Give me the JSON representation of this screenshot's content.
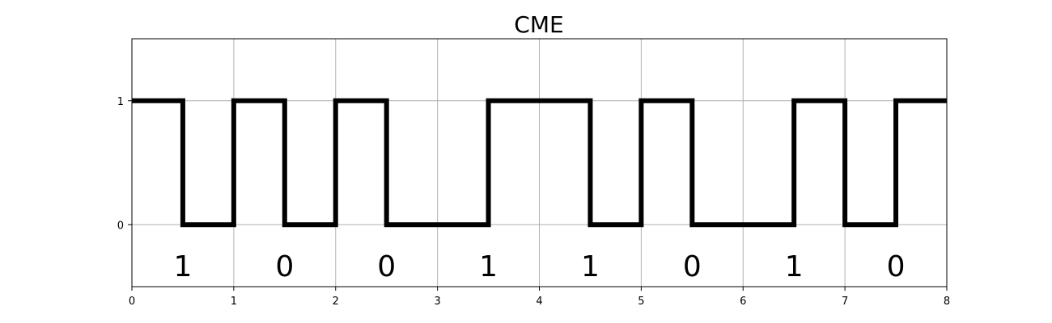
{
  "chart_data": {
    "type": "line",
    "title": "CME",
    "xlabel": "",
    "ylabel": "",
    "xlim": [
      0,
      8
    ],
    "ylim": [
      -0.5,
      1.5
    ],
    "grid": true,
    "x_ticks": [
      "0",
      "1",
      "2",
      "3",
      "4",
      "5",
      "6",
      "7",
      "8"
    ],
    "y_ticks": [
      "0",
      "1"
    ],
    "line_color": "#000000",
    "grid_color": "#b0b0b0",
    "series": [
      {
        "x": [
          0,
          0.5,
          0.5,
          1,
          1,
          1.5,
          1.5,
          2,
          2,
          2.5,
          2.5,
          3.5,
          3.5,
          4.5,
          4.5,
          5,
          5,
          5.5,
          5.5,
          6.5,
          6.5,
          7,
          7,
          7.5,
          7.5,
          8
        ],
        "y": [
          1,
          1,
          0,
          0,
          1,
          1,
          0,
          0,
          1,
          1,
          0,
          0,
          1,
          1,
          0,
          0,
          1,
          1,
          0,
          0,
          1,
          1,
          0,
          0,
          1,
          1
        ]
      }
    ],
    "annotations": [
      {
        "x": 0.5,
        "y": -0.33,
        "text": "1"
      },
      {
        "x": 1.5,
        "y": -0.33,
        "text": "0"
      },
      {
        "x": 2.5,
        "y": -0.33,
        "text": "0"
      },
      {
        "x": 3.5,
        "y": -0.33,
        "text": "1"
      },
      {
        "x": 4.5,
        "y": -0.33,
        "text": "1"
      },
      {
        "x": 5.5,
        "y": -0.33,
        "text": "0"
      },
      {
        "x": 6.5,
        "y": -0.33,
        "text": "1"
      },
      {
        "x": 7.5,
        "y": -0.33,
        "text": "0"
      }
    ]
  }
}
